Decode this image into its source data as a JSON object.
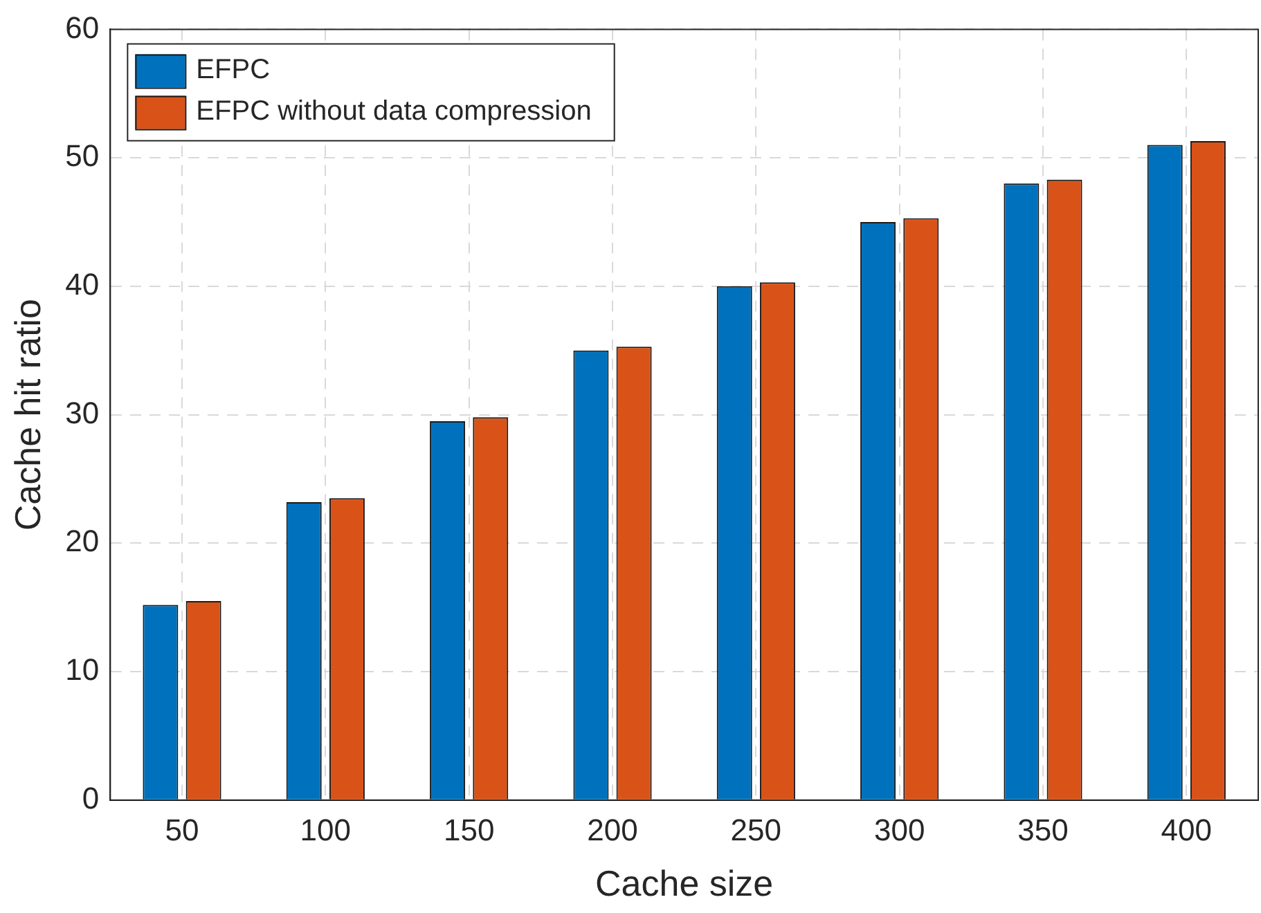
{
  "chart_data": {
    "type": "bar",
    "xlabel": "Cache size",
    "ylabel": "Cache hit ratio",
    "categories": [
      "50",
      "100",
      "150",
      "200",
      "250",
      "300",
      "350",
      "400"
    ],
    "series": [
      {
        "name": "EFPC",
        "color": "#0072bd",
        "values": [
          15.2,
          23.2,
          29.5,
          35,
          40,
          45,
          48,
          51
        ]
      },
      {
        "name": "EFPC without data compression",
        "color": "#d95319",
        "values": [
          15.5,
          23.5,
          29.8,
          35.3,
          40.3,
          45.3,
          48.3,
          51.3
        ]
      }
    ],
    "ylim": [
      0,
      60
    ],
    "yticks": [
      0,
      10,
      20,
      30,
      40,
      50,
      60
    ],
    "grid": true,
    "legend": "top left"
  }
}
